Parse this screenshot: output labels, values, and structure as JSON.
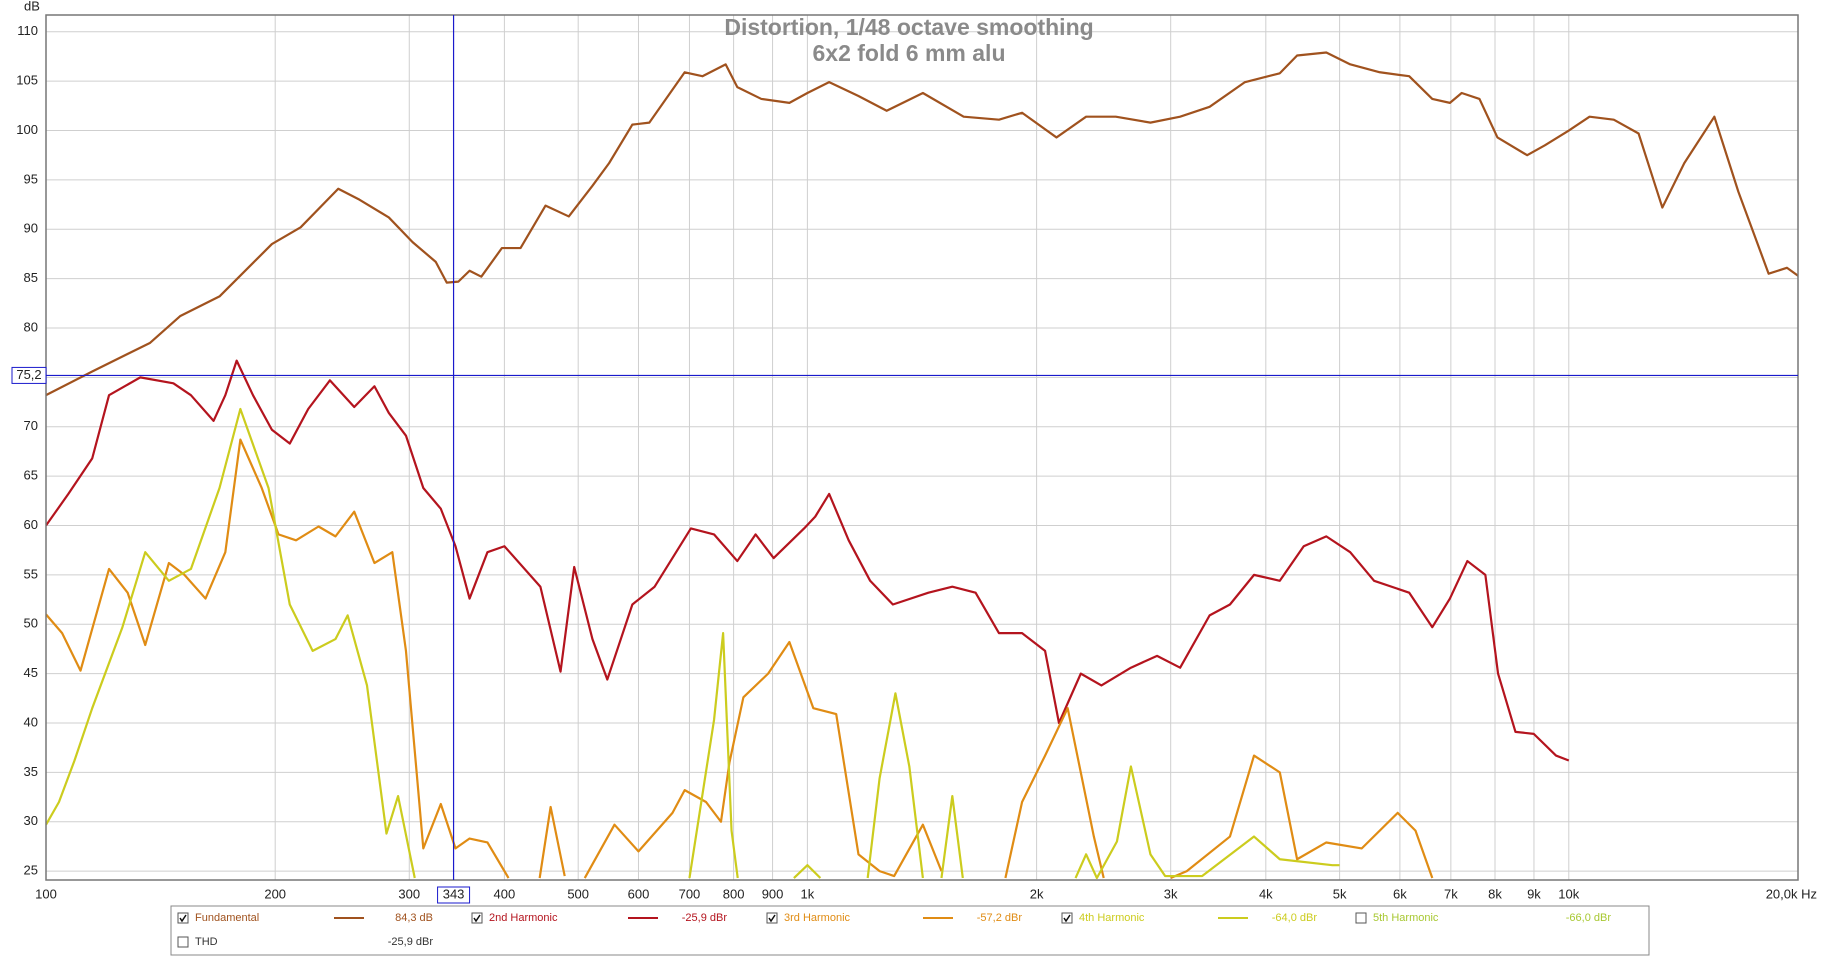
{
  "chart_data": {
    "type": "line",
    "title": "Distortion, 1/48 octave smoothing",
    "subtitle": "6x2 fold 6 mm alu",
    "y_label": "dB",
    "log_x": true,
    "grid": true,
    "xlim": [
      100,
      20000
    ],
    "ylim": [
      24.1,
      111.7
    ],
    "xticks": [
      100,
      200,
      300,
      400,
      500,
      600,
      700,
      800,
      900,
      {
        "value": 1000,
        "label": "1k"
      },
      {
        "value": 2000,
        "label": "2k"
      },
      {
        "value": 3000,
        "label": "3k"
      },
      {
        "value": 4000,
        "label": "4k"
      },
      {
        "value": 5000,
        "label": "5k"
      },
      {
        "value": 6000,
        "label": "6k"
      },
      {
        "value": 7000,
        "label": "7k"
      },
      {
        "value": 8000,
        "label": "8k"
      },
      {
        "value": 9000,
        "label": "9k"
      },
      {
        "value": 10000,
        "label": "10k"
      },
      {
        "value": 20000,
        "label": "20,0k Hz"
      }
    ],
    "yticks": [
      25,
      30,
      35,
      40,
      45,
      50,
      55,
      60,
      65,
      70,
      75,
      80,
      85,
      90,
      95,
      100,
      105,
      110
    ],
    "cursor": {
      "x": 343,
      "y": {
        "value": 75.2,
        "label": "75,2"
      },
      "color": "#1a1acc"
    },
    "series": [
      {
        "name": "Fundamental",
        "color": "#a0521e",
        "checked": true,
        "readout": "84,3 dB",
        "x": [
          100,
          115,
          137,
          150,
          169,
          198,
          216,
          242,
          258,
          282,
          303,
          325,
          336,
          348,
          360,
          373,
          397,
          420,
          453,
          486,
          522,
          549,
          589,
          620,
          690,
          728,
          781,
          809,
          870,
          947,
          1000,
          1068,
          1167,
          1271,
          1418,
          1604,
          1785,
          1914,
          2124,
          2323,
          2541,
          2822,
          3087,
          3375,
          3755,
          4173,
          4397,
          4803,
          5163,
          5647,
          6171,
          6618,
          6980,
          7233,
          7633,
          8059,
          8817,
          9302,
          10000,
          10648,
          11458,
          12350,
          13270,
          14180,
          15530,
          16700,
          18300,
          19340,
          20000
        ],
        "values": [
          73.2,
          75.6,
          78.5,
          81.2,
          83.2,
          88.5,
          90.2,
          94.1,
          93,
          91.2,
          88.7,
          86.7,
          84.6,
          84.7,
          85.8,
          85.2,
          88.1,
          88.1,
          92.4,
          91.3,
          94.4,
          96.7,
          100.6,
          100.8,
          105.9,
          105.5,
          106.7,
          104.4,
          103.2,
          102.8,
          103.8,
          104.9,
          103.5,
          102,
          103.8,
          101.4,
          101.1,
          101.8,
          99.3,
          101.4,
          101.4,
          100.8,
          101.4,
          102.4,
          104.9,
          105.8,
          107.6,
          107.9,
          106.7,
          105.9,
          105.5,
          103.2,
          102.8,
          103.8,
          103.2,
          99.3,
          97.5,
          98.5,
          100,
          101.4,
          101.1,
          99.7,
          92.2,
          96.7,
          101.4,
          93.8,
          85.5,
          86.1,
          85.3
        ]
      },
      {
        "name": "2nd Harmonic",
        "color": "#b4141e",
        "checked": true,
        "readout": "-25,9 dBr",
        "x": [
          100,
          107,
          115,
          121,
          133,
          147,
          155,
          166,
          172,
          178,
          187,
          198,
          209,
          221,
          236,
          254,
          270,
          282,
          297,
          313,
          330,
          345,
          360,
          380,
          400,
          446,
          474,
          494,
          522,
          546,
          589,
          630,
          703,
          754,
          809,
          855,
          903,
          990,
          1024,
          1068,
          1133,
          1209,
          1295,
          1442,
          1550,
          1663,
          1785,
          1914,
          2052,
          2140,
          2286,
          2433,
          2660,
          2879,
          3087,
          3375,
          3589,
          3860,
          4173,
          4486,
          4803,
          5163,
          5550,
          6171,
          6618,
          6980,
          7359,
          7770,
          8074,
          8511,
          8995,
          9620,
          10000
        ],
        "values": [
          60,
          63.2,
          66.8,
          73.2,
          75,
          74.4,
          73.2,
          70.6,
          73.2,
          76.7,
          73.2,
          69.7,
          68.3,
          71.8,
          74.7,
          72,
          74.1,
          71.4,
          69.1,
          63.8,
          61.7,
          57.9,
          52.6,
          57.3,
          57.9,
          53.8,
          45.2,
          55.8,
          48.5,
          44.4,
          52,
          53.8,
          59.7,
          59.1,
          56.4,
          59.1,
          56.7,
          59.7,
          60.9,
          63.2,
          58.5,
          54.4,
          52,
          53.2,
          53.8,
          53.2,
          49.1,
          49.1,
          47.3,
          40,
          45,
          43.8,
          45.6,
          46.8,
          45.6,
          50.9,
          52,
          55,
          54.4,
          57.9,
          58.9,
          57.3,
          54.4,
          53.2,
          49.7,
          52.6,
          56.4,
          55,
          45,
          39.1,
          38.9,
          36.7,
          36.2
        ]
      },
      {
        "name": "3rd Harmonic",
        "color": "#e08c14",
        "checked": true,
        "readout": "-57,2 dBr",
        "x": [
          100,
          105,
          111,
          121,
          128,
          135,
          145,
          152,
          162,
          172,
          180,
          192,
          202,
          213,
          228,
          240,
          254,
          270,
          285,
          297,
          313,
          330,
          345,
          360,
          380,
          405,
          420,
          445,
          460,
          480,
          490,
          510,
          558,
          600,
          665,
          690,
          736,
          770,
          790,
          824,
          888,
          947,
          1018,
          1091,
          1167,
          1244,
          1300,
          1418,
          1500,
          1550,
          1820,
          1914,
          2052,
          2197,
          2378,
          2450,
          2500,
          3000,
          3150,
          3589,
          3860,
          4173,
          4397,
          4803,
          5347,
          5960,
          6290,
          6618
        ],
        "values": [
          51,
          49.1,
          45.3,
          55.6,
          53.2,
          47.9,
          56.2,
          55,
          52.6,
          57.3,
          68.7,
          63.8,
          59.1,
          58.5,
          59.9,
          58.9,
          61.4,
          56.2,
          57.3,
          47.3,
          27.3,
          31.8,
          27.3,
          28.3,
          27.9,
          24.3,
          null,
          24.3,
          31.5,
          24.5,
          null,
          24.3,
          29.7,
          27,
          30.9,
          33.2,
          32,
          30,
          36,
          42.6,
          45,
          48.2,
          41.5,
          40.9,
          26.7,
          25,
          24.5,
          29.7,
          25,
          null,
          24.3,
          32,
          36.7,
          41.5,
          28.5,
          24.3,
          null,
          24.3,
          25,
          28.5,
          36.7,
          35,
          26.2,
          27.9,
          27.3,
          30.9,
          29.1,
          24.3
        ]
      },
      {
        "name": "4th Harmonic",
        "color": "#cccc1e",
        "checked": true,
        "readout": "-64,0 dBr",
        "x": [
          100,
          104,
          109,
          115,
          126,
          135,
          145,
          155,
          169,
          180,
          196,
          209,
          224,
          240,
          249,
          264,
          280,
          290,
          305,
          320,
          700,
          754,
          775,
          795,
          810,
          830,
          960,
          1000,
          1040,
          1080,
          1200,
          1244,
          1305,
          1361,
          1418,
          1450,
          1500,
          1550,
          1600,
          1650,
          2250,
          2323,
          2400,
          2550,
          2660,
          2822,
          2950,
          3300,
          3860,
          4173,
          4891,
          5000
        ],
        "values": [
          29.7,
          32,
          36.2,
          41.5,
          49.7,
          57.3,
          54.4,
          55.6,
          63.8,
          71.8,
          63.8,
          52,
          47.3,
          48.5,
          50.9,
          43.8,
          28.8,
          32.6,
          24.3,
          null,
          24.3,
          40.3,
          49.1,
          29.1,
          24.3,
          null,
          24.3,
          25.6,
          24.3,
          null,
          24.3,
          34.4,
          43,
          35.6,
          24.3,
          null,
          24.3,
          32.6,
          24.3,
          null,
          24.3,
          26.7,
          24.3,
          28,
          35.6,
          26.7,
          24.5,
          24.5,
          28.5,
          26.2,
          25.6,
          25.6
        ]
      },
      {
        "name": "5th Harmonic",
        "color": "#a8c832",
        "checked": false,
        "readout": "-66,0 dBr"
      },
      {
        "name": "THD",
        "color": "#333333",
        "checked": false,
        "readout": "-25,9 dBr"
      }
    ]
  }
}
